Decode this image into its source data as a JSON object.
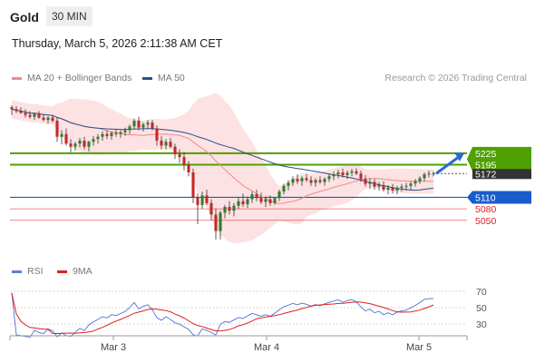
{
  "header": {
    "instrument": "Gold",
    "timeframe": "30 MIN",
    "datetime": "Thursday, March 5, 2026 2:11:38 AM CET"
  },
  "legend": {
    "items": [
      {
        "label": "MA 20 + Bollinger Bands",
        "color": "#f08a8a"
      },
      {
        "label": "MA 50",
        "color": "#2c4f8c"
      }
    ],
    "credit": "Research © 2026 Trading Central"
  },
  "rsi_legend": {
    "items": [
      {
        "label": "RSI",
        "color": "#5b7fd6"
      },
      {
        "label": "9MA",
        "color": "#e02020"
      }
    ]
  },
  "chart_data": [
    {
      "type": "candlestick",
      "x_labels": [
        "Mar 3",
        "Mar 4",
        "Mar 5"
      ],
      "y_axis": {
        "scale": "linear",
        "min": 4950,
        "max": 5400,
        "ticks_shown": false,
        "position": "right"
      },
      "levels": [
        {
          "label": "5225",
          "value": 5225,
          "style": "resistance",
          "color": "#4fa000"
        },
        {
          "label": "5195",
          "value": 5195,
          "style": "resistance",
          "color": "#4fa000"
        },
        {
          "label": "5172",
          "value": 5172,
          "style": "last-price",
          "color": "#333333"
        },
        {
          "label": "5110",
          "value": 5110,
          "style": "pivot",
          "color": "#1a5ccc"
        },
        {
          "label": "5080",
          "value": 5080,
          "style": "support",
          "color": "#e02020"
        },
        {
          "label": "5050",
          "value": 5050,
          "style": "support",
          "color": "#e02020"
        }
      ],
      "series": [
        {
          "name": "MA 20 + Bollinger Bands",
          "color": "#f08a8a"
        },
        {
          "name": "MA 50",
          "color": "#2c4f8c"
        }
      ],
      "candles": [
        [
          5345,
          5350,
          5325,
          5340
        ],
        [
          5340,
          5348,
          5330,
          5335
        ],
        [
          5335,
          5345,
          5328,
          5330
        ],
        [
          5330,
          5340,
          5318,
          5325
        ],
        [
          5325,
          5335,
          5315,
          5320
        ],
        [
          5320,
          5330,
          5312,
          5328
        ],
        [
          5328,
          5335,
          5315,
          5318
        ],
        [
          5318,
          5325,
          5308,
          5312
        ],
        [
          5312,
          5322,
          5302,
          5318
        ],
        [
          5318,
          5325,
          5305,
          5310
        ],
        [
          5310,
          5318,
          5255,
          5268
        ],
        [
          5268,
          5285,
          5248,
          5275
        ],
        [
          5275,
          5290,
          5245,
          5250
        ],
        [
          5250,
          5262,
          5228,
          5242
        ],
        [
          5242,
          5255,
          5232,
          5250
        ],
        [
          5250,
          5265,
          5240,
          5258
        ],
        [
          5258,
          5268,
          5235,
          5242
        ],
        [
          5242,
          5258,
          5230,
          5255
        ],
        [
          5255,
          5270,
          5245,
          5262
        ],
        [
          5262,
          5275,
          5250,
          5268
        ],
        [
          5268,
          5282,
          5258,
          5275
        ],
        [
          5275,
          5285,
          5262,
          5270
        ],
        [
          5270,
          5282,
          5260,
          5278
        ],
        [
          5278,
          5288,
          5268,
          5275
        ],
        [
          5275,
          5285,
          5265,
          5280
        ],
        [
          5280,
          5292,
          5270,
          5285
        ],
        [
          5285,
          5300,
          5275,
          5295
        ],
        [
          5295,
          5315,
          5288,
          5310
        ],
        [
          5310,
          5320,
          5285,
          5292
        ],
        [
          5292,
          5305,
          5282,
          5300
        ],
        [
          5300,
          5312,
          5290,
          5305
        ],
        [
          5305,
          5312,
          5285,
          5290
        ],
        [
          5290,
          5298,
          5245,
          5258
        ],
        [
          5258,
          5270,
          5235,
          5245
        ],
        [
          5245,
          5262,
          5235,
          5255
        ],
        [
          5255,
          5265,
          5238,
          5242
        ],
        [
          5242,
          5250,
          5210,
          5222
        ],
        [
          5222,
          5235,
          5200,
          5215
        ],
        [
          5215,
          5228,
          5180,
          5195
        ],
        [
          5195,
          5205,
          5165,
          5175
        ],
        [
          5175,
          5185,
          5095,
          5110
        ],
        [
          5110,
          5120,
          5040,
          5090
        ],
        [
          5090,
          5125,
          5080,
          5115
        ],
        [
          5115,
          5130,
          5090,
          5095
        ],
        [
          5095,
          5105,
          5050,
          5065
        ],
        [
          5065,
          5080,
          5000,
          5022
        ],
        [
          5022,
          5075,
          5000,
          5070
        ],
        [
          5070,
          5090,
          5055,
          5085
        ],
        [
          5085,
          5100,
          5065,
          5075
        ],
        [
          5075,
          5095,
          5060,
          5088
        ],
        [
          5088,
          5110,
          5080,
          5100
        ],
        [
          5100,
          5120,
          5085,
          5092
        ],
        [
          5092,
          5112,
          5082,
          5105
        ],
        [
          5105,
          5125,
          5095,
          5118
        ],
        [
          5118,
          5130,
          5100,
          5108
        ],
        [
          5108,
          5122,
          5092,
          5098
        ],
        [
          5098,
          5112,
          5085,
          5105
        ],
        [
          5105,
          5115,
          5088,
          5095
        ],
        [
          5095,
          5110,
          5090,
          5108
        ],
        [
          5108,
          5130,
          5100,
          5125
        ],
        [
          5125,
          5145,
          5118,
          5140
        ],
        [
          5140,
          5155,
          5128,
          5148
        ],
        [
          5148,
          5165,
          5140,
          5158
        ],
        [
          5158,
          5170,
          5145,
          5152
        ],
        [
          5152,
          5165,
          5140,
          5160
        ],
        [
          5160,
          5172,
          5150,
          5155
        ],
        [
          5155,
          5165,
          5140,
          5148
        ],
        [
          5148,
          5160,
          5138,
          5155
        ],
        [
          5155,
          5165,
          5145,
          5150
        ],
        [
          5150,
          5162,
          5140,
          5158
        ],
        [
          5158,
          5172,
          5150,
          5165
        ],
        [
          5165,
          5178,
          5155,
          5170
        ],
        [
          5170,
          5182,
          5160,
          5175
        ],
        [
          5175,
          5185,
          5162,
          5168
        ],
        [
          5168,
          5180,
          5158,
          5174
        ],
        [
          5174,
          5184,
          5165,
          5178
        ],
        [
          5178,
          5186,
          5168,
          5172
        ],
        [
          5172,
          5180,
          5150,
          5158
        ],
        [
          5158,
          5168,
          5138,
          5145
        ],
        [
          5145,
          5160,
          5132,
          5150
        ],
        [
          5150,
          5158,
          5130,
          5138
        ],
        [
          5138,
          5150,
          5128,
          5142
        ],
        [
          5142,
          5152,
          5125,
          5130
        ],
        [
          5130,
          5142,
          5118,
          5135
        ],
        [
          5135,
          5145,
          5120,
          5128
        ],
        [
          5128,
          5140,
          5118,
          5135
        ],
        [
          5135,
          5145,
          5125,
          5138
        ],
        [
          5138,
          5148,
          5128,
          5140
        ],
        [
          5140,
          5152,
          5130,
          5146
        ],
        [
          5146,
          5158,
          5138,
          5152
        ],
        [
          5152,
          5165,
          5145,
          5160
        ],
        [
          5160,
          5175,
          5152,
          5170
        ],
        [
          5170,
          5180,
          5162,
          5172
        ],
        [
          5172,
          5178,
          5165,
          5172
        ]
      ]
    },
    {
      "type": "line",
      "x_labels": [
        "Mar 3",
        "Mar 4",
        "Mar 5"
      ],
      "y_axis": {
        "ticks": [
          30,
          50,
          70
        ],
        "min": 20,
        "max": 80
      },
      "series": [
        {
          "name": "RSI",
          "color": "#5b7fd6"
        },
        {
          "name": "9MA",
          "color": "#e02020"
        }
      ]
    }
  ]
}
